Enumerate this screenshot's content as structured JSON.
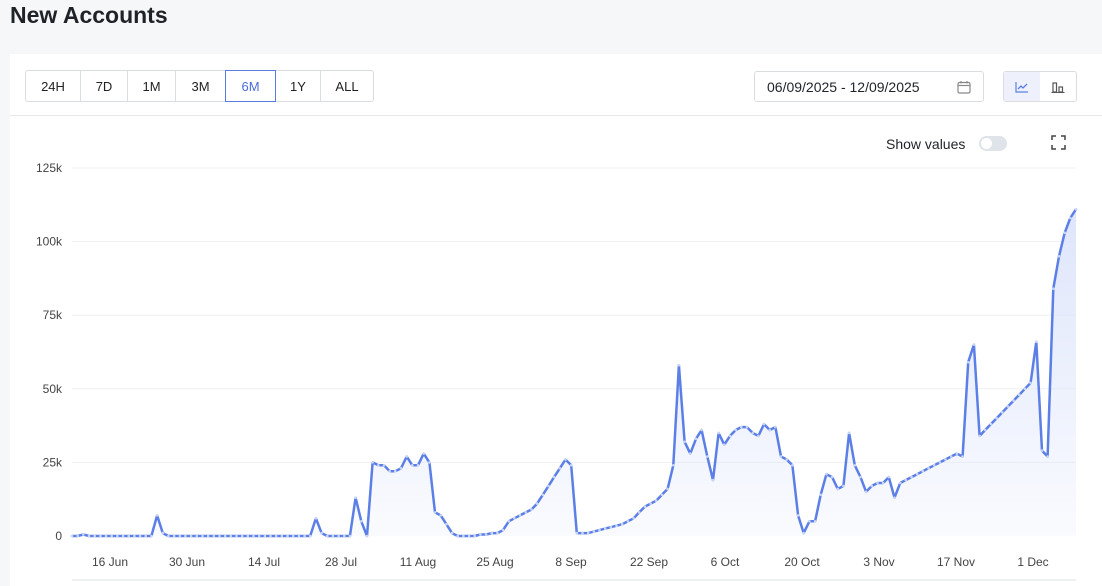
{
  "header": {
    "title": "New Accounts"
  },
  "range_buttons": [
    {
      "label": "24H"
    },
    {
      "label": "7D"
    },
    {
      "label": "1M"
    },
    {
      "label": "3M"
    },
    {
      "label": "6M"
    },
    {
      "label": "1Y"
    },
    {
      "label": "ALL"
    }
  ],
  "active_range": "6M",
  "date_range": {
    "value": "06/09/2025 - 12/09/2025"
  },
  "controls": {
    "show_values_label": "Show values",
    "show_values_on": false
  },
  "icons": {
    "calendar": "calendar-icon",
    "line_view": "line-chart-icon",
    "bar_view": "bar-chart-icon",
    "fullscreen": "fullscreen-icon"
  },
  "colors": {
    "accent": "#5b7fe6",
    "fill": "#dbe3fb"
  },
  "chart_data": {
    "type": "area",
    "x_ticks": [
      "16 Jun",
      "30 Jun",
      "14 Jul",
      "28 Jul",
      "11 Aug",
      "25 Aug",
      "8 Sep",
      "22 Sep",
      "6 Oct",
      "20 Oct",
      "3 Nov",
      "17 Nov",
      "1 Dec"
    ],
    "y_ticks": [
      "0",
      "25k",
      "50k",
      "75k",
      "100k",
      "125k"
    ],
    "ylim": [
      0,
      125000
    ],
    "grid": true,
    "start_date": "2025-06-09",
    "values": [
      0,
      0,
      500,
      0,
      0,
      0,
      0,
      0,
      0,
      0,
      0,
      0,
      0,
      0,
      0,
      7000,
      1000,
      0,
      0,
      0,
      0,
      0,
      0,
      0,
      0,
      0,
      0,
      0,
      0,
      0,
      0,
      0,
      0,
      0,
      0,
      0,
      0,
      0,
      0,
      0,
      0,
      0,
      0,
      6000,
      1000,
      0,
      0,
      0,
      0,
      0,
      13000,
      5000,
      0,
      25000,
      24000,
      24000,
      22000,
      22000,
      23000,
      27000,
      24000,
      24000,
      28000,
      25000,
      8000,
      7000,
      4000,
      1000,
      0,
      0,
      0,
      0,
      500,
      500,
      1000,
      1000,
      2000,
      5000,
      6000,
      7000,
      8000,
      9000,
      11000,
      14000,
      17000,
      20000,
      23000,
      26000,
      24000,
      1000,
      1000,
      1000,
      1500,
      2000,
      2500,
      3000,
      3500,
      4000,
      5000,
      6000,
      8000,
      10000,
      11000,
      12000,
      14000,
      16000,
      24000,
      58000,
      32000,
      28000,
      33000,
      36000,
      27000,
      19000,
      35000,
      31000,
      34000,
      36000,
      37000,
      37000,
      35000,
      34000,
      38000,
      36000,
      37000,
      27000,
      26000,
      24000,
      7000,
      1000,
      5000,
      5000,
      14000,
      21000,
      20000,
      16000,
      17000,
      35000,
      24000,
      20000,
      15000,
      17000,
      18000,
      18000,
      20000,
      13000,
      18000,
      19000,
      20000,
      21000,
      22000,
      23000,
      24000,
      25000,
      26000,
      27000,
      28000,
      27000,
      59000,
      65000,
      34000,
      36000,
      38000,
      40000,
      42000,
      44000,
      46000,
      48000,
      50000,
      52000,
      66000,
      29000,
      27000,
      84000,
      95000,
      103000,
      108000,
      111000
    ]
  }
}
